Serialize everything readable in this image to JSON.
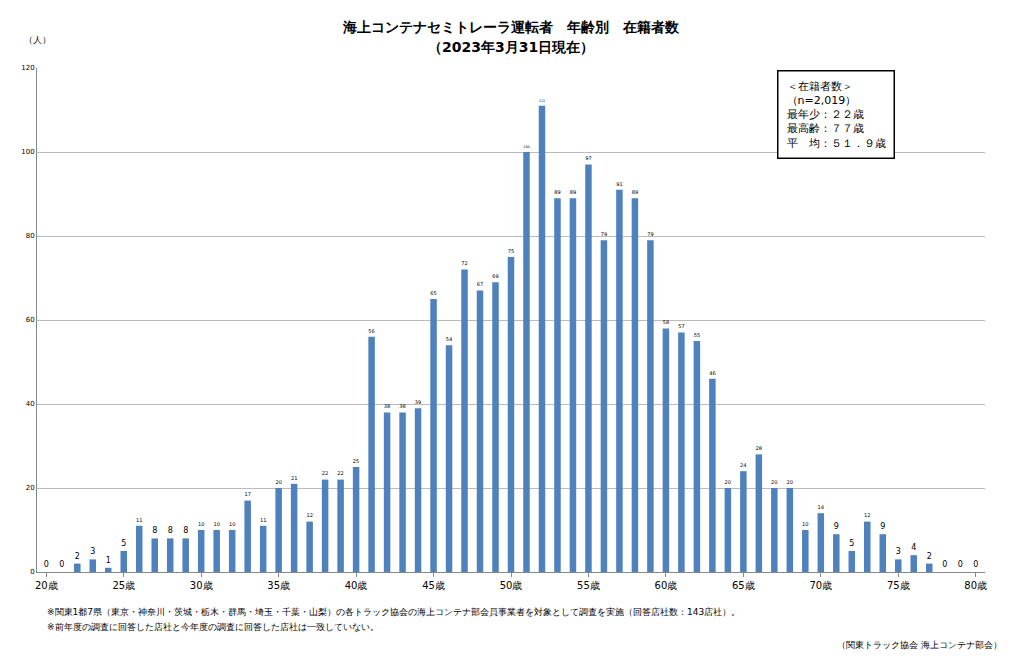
{
  "chart_data": {
    "type": "bar",
    "title": "海上コンテナセミトレーラ運転者　年齢別　在籍者数",
    "subtitle": "（2023年3月31日現在）",
    "y_label": "（人）",
    "x": [
      20,
      21,
      22,
      23,
      24,
      25,
      26,
      27,
      28,
      29,
      30,
      31,
      32,
      33,
      34,
      35,
      36,
      37,
      38,
      39,
      40,
      41,
      42,
      43,
      44,
      45,
      46,
      47,
      48,
      49,
      50,
      51,
      52,
      53,
      54,
      55,
      56,
      57,
      58,
      59,
      60,
      61,
      62,
      63,
      64,
      65,
      66,
      67,
      68,
      69,
      70,
      71,
      72,
      73,
      74,
      75,
      76,
      77,
      78,
      79,
      80
    ],
    "values": [
      0,
      0,
      2,
      3,
      1,
      5,
      11,
      8,
      8,
      8,
      10,
      10,
      10,
      17,
      11,
      20,
      21,
      12,
      22,
      22,
      25,
      56,
      38,
      38,
      39,
      65,
      54,
      72,
      67,
      69,
      75,
      100,
      111,
      89,
      89,
      97,
      79,
      91,
      89,
      79,
      58,
      57,
      55,
      46,
      20,
      24,
      28,
      20,
      20,
      10,
      14,
      9,
      5,
      12,
      9,
      3,
      4,
      2,
      0,
      0,
      0
    ],
    "color": "#4f81bd",
    "xlim": [
      19.4,
      80.6
    ],
    "xticks": [
      {
        "value": 20,
        "label": "20歳"
      },
      {
        "value": 25,
        "label": "25歳"
      },
      {
        "value": 30,
        "label": "30歳"
      },
      {
        "value": 35,
        "label": "35歳"
      },
      {
        "value": 40,
        "label": "40歳"
      },
      {
        "value": 45,
        "label": "45歳"
      },
      {
        "value": 50,
        "label": "50歳"
      },
      {
        "value": 55,
        "label": "55歳"
      },
      {
        "value": 60,
        "label": "60歳"
      },
      {
        "value": 65,
        "label": "65歳"
      },
      {
        "value": 70,
        "label": "70歳"
      },
      {
        "value": 75,
        "label": "75歳"
      },
      {
        "value": 80,
        "label": "80歳"
      }
    ],
    "ylim": [
      0,
      120
    ],
    "yticks": [
      0,
      20,
      40,
      60,
      80,
      100,
      120
    ],
    "grid": true,
    "data_labels": true,
    "info_box": [
      "＜在籍者数＞",
      "（n=2,019）",
      "最年少：２２歳",
      "最高齢：７７歳",
      "平　均：５１．９歳"
    ],
    "notes": [
      "※関東1都7県（東京・神奈川・茨城・栃木・群馬・埼玉・千葉・山梨）の各トラック協会の海上コンテナ部会員事業者を対象として調査を実施（回答店社数：143店社）。",
      "※前年度の調査に回答した店社と今年度の調査に回答した店社は一致していない。"
    ],
    "source": "（関東トラック協会 海上コンテナ部会）"
  }
}
